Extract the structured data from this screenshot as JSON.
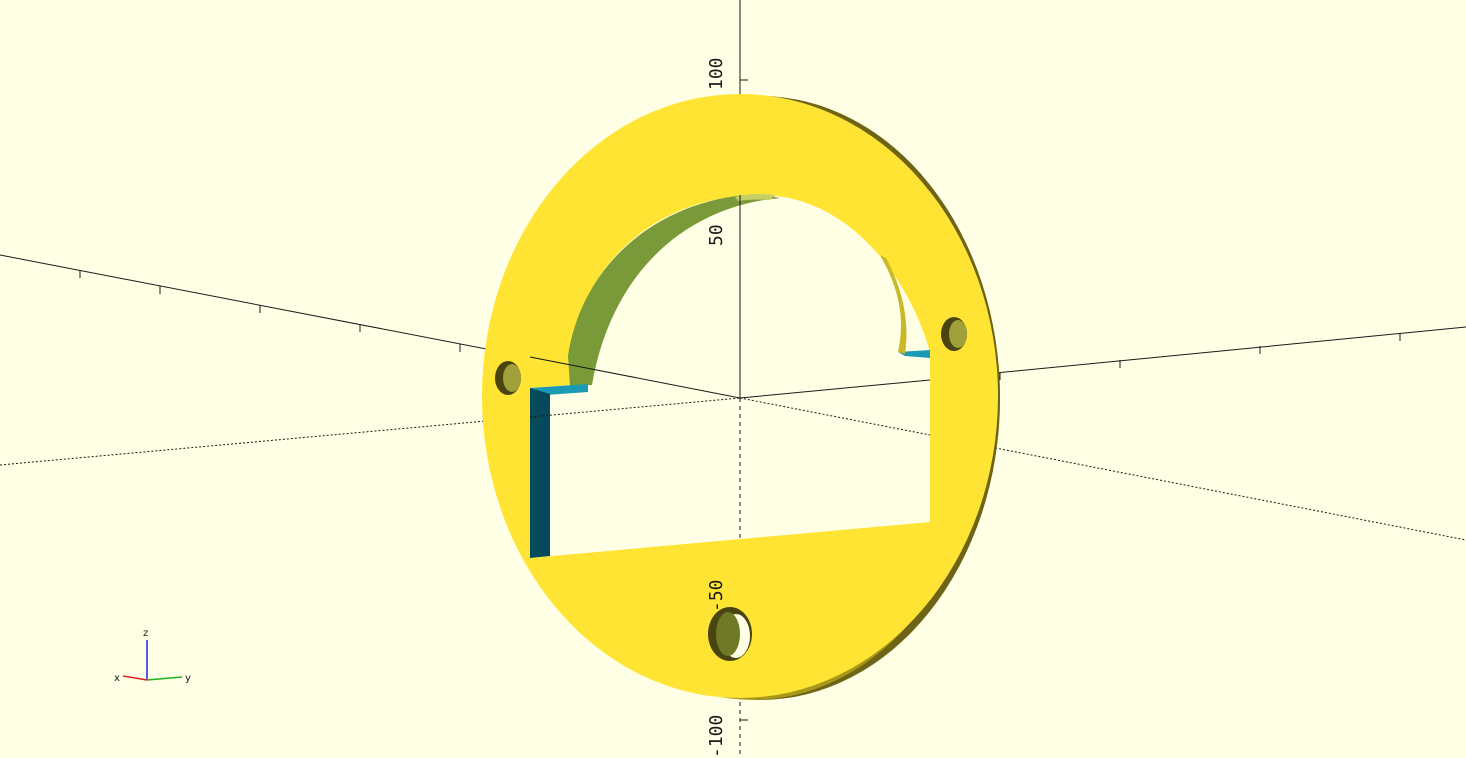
{
  "viewport": {
    "background": "#ffffe5",
    "axis_color": "#1a1a1a"
  },
  "model": {
    "face_color": "#ffe433",
    "side_color": "#a89818",
    "shadow_color": "#4a4510",
    "cut_face_color": "#1a9ab3",
    "cut_dark_color": "#05495a"
  },
  "axis_labels": {
    "z_positive": "50",
    "z_top": "100",
    "z_negative": "-50",
    "z_bottom": "-100"
  },
  "orientation_gizmo": {
    "x_label": "x",
    "y_label": "y",
    "z_label": "z",
    "x_color": "#e02020",
    "y_color": "#20b020",
    "z_color": "#2020e0"
  }
}
